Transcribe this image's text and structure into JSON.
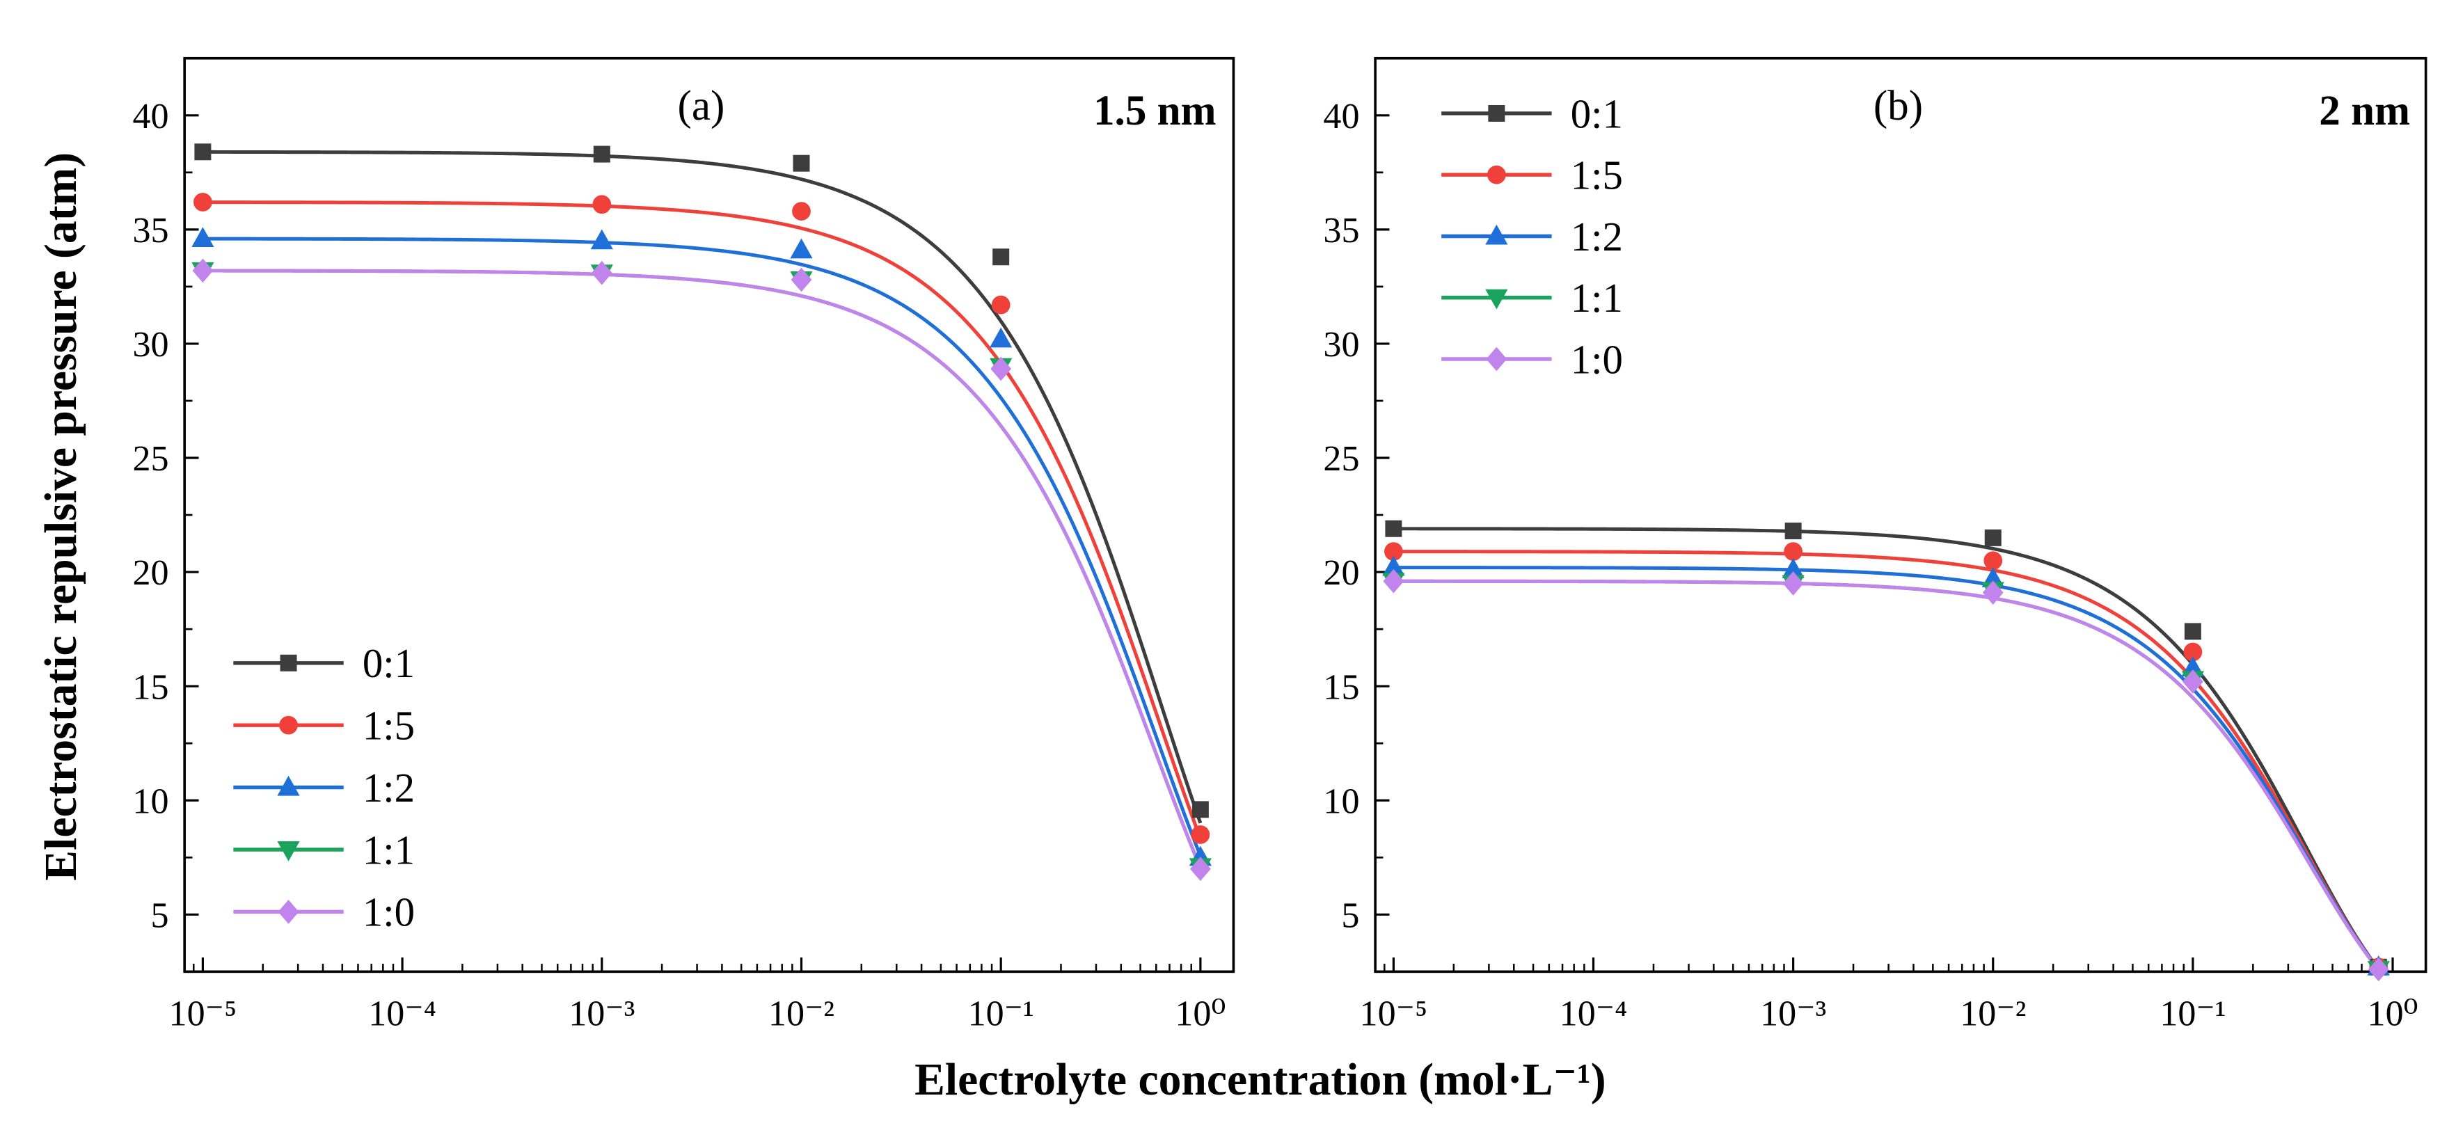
{
  "figure": {
    "xlabel": "Electrolyte concentration (mol·L⁻¹)",
    "ylabel": "Electrostatic repulsive pressure (atm)"
  },
  "chart_data": [
    {
      "type": "scatter",
      "panel_label": "(a)",
      "annotation": "1.5 nm",
      "xscale": "log",
      "xlim": [
        8.1e-06,
        1.465
      ],
      "ylim": [
        2.5,
        42.5
      ],
      "xticks": [
        1e-05,
        0.0001,
        0.001,
        0.01,
        0.1,
        1
      ],
      "xtick_labels": [
        "10⁻⁵",
        "10⁻⁴",
        "10⁻³",
        "10⁻²",
        "10⁻¹",
        "10⁰"
      ],
      "yticks": [
        5,
        10,
        15,
        20,
        25,
        30,
        35,
        40
      ],
      "ytick_labels": [
        "5",
        "10",
        "15",
        "20",
        "25",
        "30",
        "35",
        "40"
      ],
      "legend_position": "bottom-left",
      "series": [
        {
          "name": "0:1",
          "color": "#3d3d3d",
          "marker": "square",
          "x": [
            1e-05,
            0.001,
            0.01,
            0.1,
            1
          ],
          "y": [
            38.4,
            38.3,
            37.9,
            33.8,
            9.6
          ],
          "fit_curve": {
            "p0": 38.4,
            "k": 1.45,
            "a": 0.83,
            "c_max": 1
          }
        },
        {
          "name": "1:5",
          "color": "#f0403a",
          "marker": "circle",
          "x": [
            1e-05,
            0.001,
            0.01,
            0.1,
            1
          ],
          "y": [
            36.2,
            36.1,
            35.8,
            31.7,
            8.5
          ],
          "fit_curve": {
            "p0": 36.2,
            "k": 1.47,
            "a": 0.83,
            "c_max": 1
          }
        },
        {
          "name": "1:2",
          "color": "#1f6fd8",
          "marker": "triangle-up",
          "x": [
            1e-05,
            0.001,
            0.01,
            0.1,
            1
          ],
          "y": [
            34.6,
            34.5,
            34.1,
            30.2,
            7.5
          ],
          "fit_curve": {
            "p0": 34.6,
            "k": 1.52,
            "a": 0.83,
            "c_max": 1
          }
        },
        {
          "name": "1:1",
          "color": "#1aa35c",
          "marker": "triangle-down",
          "x": [
            1e-05,
            0.001,
            0.01,
            0.1,
            1
          ],
          "y": [
            33.2,
            33.1,
            32.8,
            29.0,
            7.1
          ],
          "fit_curve": {
            "p0": 33.2,
            "k": 1.55,
            "a": 0.83,
            "c_max": 1
          }
        },
        {
          "name": "1:0",
          "color": "#c084ec",
          "marker": "diamond",
          "x": [
            1e-05,
            0.001,
            0.01,
            0.1,
            1
          ],
          "y": [
            33.2,
            33.1,
            32.8,
            28.9,
            7.0
          ],
          "fit_curve": {
            "p0": 33.2,
            "k": 1.55,
            "a": 0.83,
            "c_max": 1
          }
        }
      ]
    },
    {
      "type": "scatter",
      "panel_label": "(b)",
      "annotation": "2 nm",
      "xscale": "log",
      "xlim": [
        8.1e-06,
        1.465
      ],
      "ylim": [
        2.5,
        42.5
      ],
      "xticks": [
        1e-05,
        0.0001,
        0.001,
        0.01,
        0.1,
        1
      ],
      "xtick_labels": [
        "10⁻⁵",
        "10⁻⁴",
        "10⁻³",
        "10⁻²",
        "10⁻¹",
        "10⁰"
      ],
      "yticks": [
        5,
        10,
        15,
        20,
        25,
        30,
        35,
        40
      ],
      "ytick_labels": [
        "5",
        "10",
        "15",
        "20",
        "25",
        "30",
        "35",
        "40"
      ],
      "legend_position": "top-left",
      "series": [
        {
          "name": "0:1",
          "color": "#3d3d3d",
          "marker": "square",
          "x": [
            1e-05,
            0.001,
            0.01,
            0.1,
            0.85
          ],
          "y": [
            21.9,
            21.8,
            21.5,
            17.4,
            2.7
          ],
          "fit_curve": {
            "p0": 21.9,
            "k": 2.46,
            "a": 0.89,
            "c_max": 0.85
          }
        },
        {
          "name": "1:5",
          "color": "#f0403a",
          "marker": "circle",
          "x": [
            1e-05,
            0.001,
            0.01,
            0.1,
            0.85
          ],
          "y": [
            20.9,
            20.9,
            20.5,
            16.5,
            2.7
          ],
          "fit_curve": {
            "p0": 20.9,
            "k": 2.41,
            "a": 0.89,
            "c_max": 0.85
          }
        },
        {
          "name": "1:2",
          "color": "#1f6fd8",
          "marker": "triangle-up",
          "x": [
            1e-05,
            0.001,
            0.01,
            0.1,
            0.85
          ],
          "y": [
            20.2,
            20.1,
            19.7,
            15.8,
            2.7
          ],
          "fit_curve": {
            "p0": 20.2,
            "k": 2.37,
            "a": 0.89,
            "c_max": 0.85
          }
        },
        {
          "name": "1:1",
          "color": "#1aa35c",
          "marker": "triangle-down",
          "x": [
            1e-05,
            0.001,
            0.01,
            0.1,
            0.85
          ],
          "y": [
            19.6,
            19.5,
            19.2,
            15.3,
            2.6
          ],
          "fit_curve": {
            "p0": 19.6,
            "k": 2.34,
            "a": 0.89,
            "c_max": 0.85
          }
        },
        {
          "name": "1:0",
          "color": "#c084ec",
          "marker": "diamond",
          "x": [
            1e-05,
            0.001,
            0.01,
            0.1,
            0.85
          ],
          "y": [
            19.6,
            19.5,
            19.1,
            15.2,
            2.6
          ],
          "fit_curve": {
            "p0": 19.6,
            "k": 2.34,
            "a": 0.89,
            "c_max": 0.85
          }
        }
      ]
    }
  ]
}
